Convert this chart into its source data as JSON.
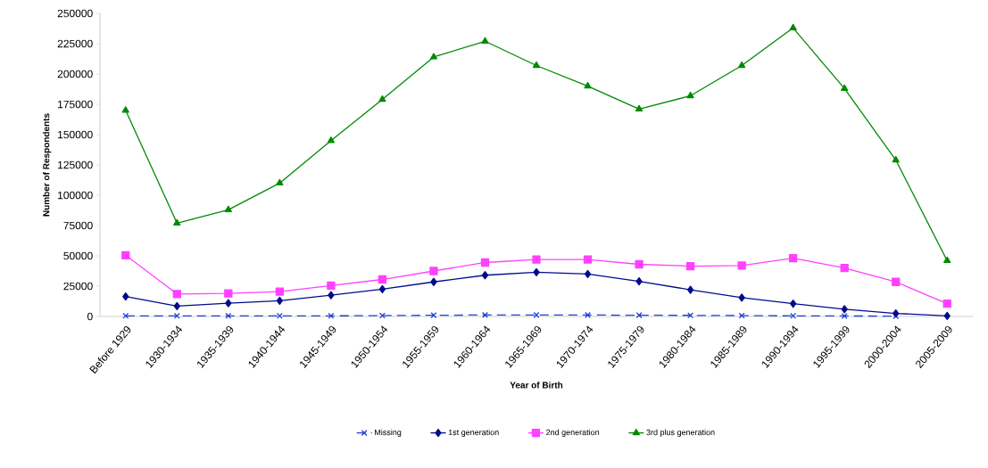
{
  "chart_data": {
    "type": "line",
    "xlabel": "Year of Birth",
    "ylabel": "Number of Respondents",
    "categories": [
      "Before 1929",
      "1930-1934",
      "1935-1939",
      "1940-1944",
      "1945-1949",
      "1950-1954",
      "1955-1959",
      "1960-1964",
      "1965-1969",
      "1970-1974",
      "1975-1979",
      "1980-1984",
      "1985-1989",
      "1990-1994",
      "1995-1999",
      "2000-2004",
      "2005-2009"
    ],
    "series": [
      {
        "name": "Missing",
        "color": "#1f3fd9",
        "marker": "cross",
        "line_style": "dashed",
        "values": [
          500,
          500,
          500,
          500,
          500,
          700,
          1000,
          1200,
          1200,
          1200,
          1000,
          900,
          700,
          500,
          400,
          300,
          null
        ]
      },
      {
        "name": "1st generation",
        "color": "#000c8c",
        "marker": "diamond",
        "line_style": "solid",
        "values": [
          16500,
          8500,
          11000,
          13000,
          17500,
          22500,
          28500,
          34000,
          36500,
          35000,
          29000,
          22000,
          15500,
          10500,
          6000,
          2500,
          500
        ]
      },
      {
        "name": "2nd generation",
        "color": "#ff40ff",
        "marker": "square",
        "line_style": "solid",
        "values": [
          50500,
          18500,
          19000,
          20500,
          25500,
          30500,
          37500,
          44500,
          47000,
          47000,
          43000,
          41500,
          42000,
          48000,
          40000,
          28500,
          10500
        ]
      },
      {
        "name": "3rd plus generation",
        "color": "#008a00",
        "marker": "triangle",
        "line_style": "solid",
        "values": [
          170000,
          77000,
          88000,
          110000,
          145000,
          179000,
          214000,
          227000,
          207000,
          190000,
          171000,
          182000,
          207000,
          238000,
          188000,
          129000,
          46000
        ]
      }
    ],
    "ylim": [
      0,
      250000
    ],
    "yticks": [
      0,
      25000,
      50000,
      75000,
      100000,
      125000,
      150000,
      175000,
      200000,
      225000,
      250000
    ],
    "grid": false,
    "legend": "bottom"
  }
}
